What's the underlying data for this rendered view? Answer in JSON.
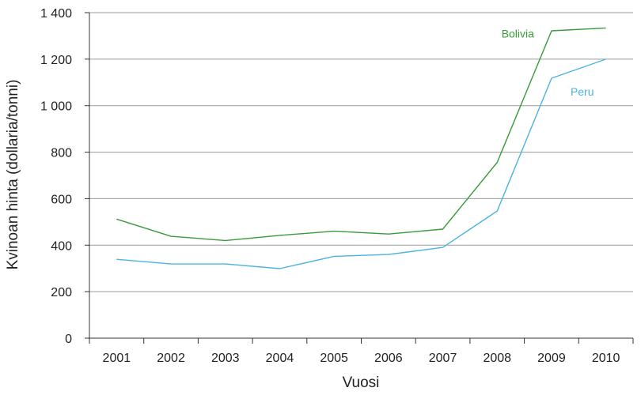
{
  "chart_data": {
    "type": "line",
    "title": "",
    "xlabel": "Vuosi",
    "ylabel": "Kvinoan hinta (dollaria/tonni)",
    "categories": [
      "2001",
      "2002",
      "2003",
      "2004",
      "2005",
      "2006",
      "2007",
      "2008",
      "2009",
      "2010"
    ],
    "ylim": [
      0,
      1400
    ],
    "yticks": [
      0,
      200,
      400,
      600,
      800,
      1000,
      1200,
      1400
    ],
    "ytick_labels": [
      "0",
      "200",
      "400",
      "600",
      "800",
      "1 000",
      "1 200",
      "1 400"
    ],
    "grid": true,
    "legend": "inline labels near line ends",
    "series": [
      {
        "name": "Bolivia",
        "color": "#3a9a3a",
        "values": [
          512,
          438,
          420,
          442,
          460,
          448,
          469,
          756,
          1322,
          1334
        ]
      },
      {
        "name": "Peru",
        "color": "#4bb3e2",
        "values": [
          339,
          319,
          319,
          299,
          352,
          360,
          390,
          547,
          1118,
          1200
        ]
      }
    ]
  }
}
